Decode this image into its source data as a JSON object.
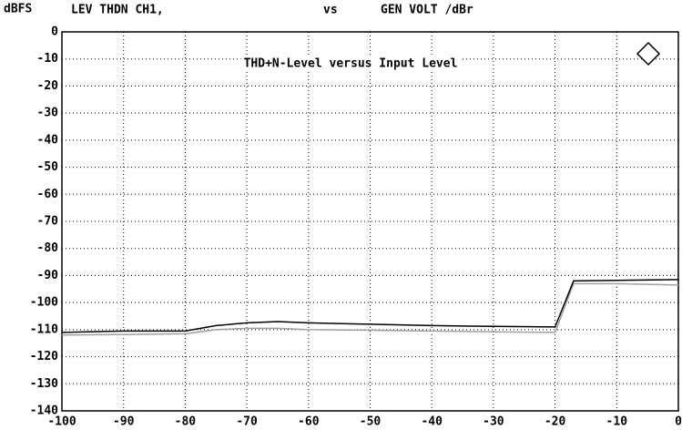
{
  "chart_data": {
    "type": "line",
    "y_label": "dBFS",
    "header_left": "LEV THDN CH1,",
    "header_mid": "vs",
    "header_right": "GEN VOLT /dBr",
    "annotation": "THD+N-Level versus Input Level",
    "x": [
      -100,
      -90,
      -80,
      -75,
      -70,
      -65,
      -60,
      -50,
      -40,
      -30,
      -20,
      -17,
      -10,
      0
    ],
    "series": [
      {
        "color": "#000000",
        "values": [
          -111,
          -110.5,
          -110.5,
          -108.5,
          -107.5,
          -107,
          -107.5,
          -108,
          -108.5,
          -108.8,
          -109,
          -92,
          -91.8,
          -91.5
        ]
      },
      {
        "color": "#a0a0a0",
        "values": [
          -112,
          -111.8,
          -111.5,
          -110,
          -109.5,
          -109.5,
          -110,
          -110.2,
          -110.5,
          -110.8,
          -111,
          -93,
          -93,
          -93.5
        ]
      }
    ],
    "xlim": [
      -100,
      0
    ],
    "xticks": [
      -100,
      -90,
      -80,
      -70,
      -60,
      -50,
      -40,
      -30,
      -20,
      -10,
      0
    ],
    "ylim": [
      -140,
      0
    ],
    "yticks": [
      0,
      -10,
      -20,
      -30,
      -40,
      -50,
      -60,
      -70,
      -80,
      -90,
      -100,
      -110,
      -120,
      -130,
      -140
    ],
    "grid": true
  }
}
